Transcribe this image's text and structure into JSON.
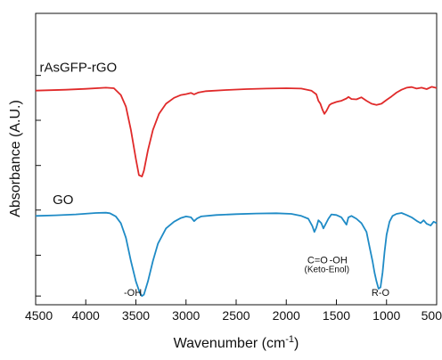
{
  "chart_data": {
    "type": "line",
    "title": "",
    "xlabel": "Wavenumber (cm",
    "xlabel_sup": "-1",
    "xlabel_close": ")",
    "ylabel": "Absorbance (A.U.)",
    "xlim": [
      4500,
      500
    ],
    "ylim": [
      0,
      1
    ],
    "x_inverted": true,
    "x_ticks": [
      4500,
      4000,
      3500,
      3000,
      2500,
      2000,
      1500,
      1000,
      500
    ],
    "y_ticks": [
      0.03,
      0.17,
      0.325,
      0.478,
      0.633,
      0.787
    ],
    "y_tick_labels_shown": false,
    "grid": false,
    "legend": "none",
    "series": [
      {
        "name": "rAsGFP-rGO",
        "color": "#e02a2a",
        "points": [
          [
            4500,
            0.735
          ],
          [
            4200,
            0.738
          ],
          [
            4000,
            0.741
          ],
          [
            3800,
            0.745
          ],
          [
            3720,
            0.743
          ],
          [
            3650,
            0.72
          ],
          [
            3600,
            0.68
          ],
          [
            3550,
            0.6
          ],
          [
            3500,
            0.5
          ],
          [
            3470,
            0.445
          ],
          [
            3440,
            0.44
          ],
          [
            3420,
            0.46
          ],
          [
            3380,
            0.53
          ],
          [
            3330,
            0.6
          ],
          [
            3270,
            0.655
          ],
          [
            3200,
            0.69
          ],
          [
            3120,
            0.71
          ],
          [
            3050,
            0.72
          ],
          [
            3000,
            0.723
          ],
          [
            2950,
            0.727
          ],
          [
            2920,
            0.722
          ],
          [
            2880,
            0.728
          ],
          [
            2800,
            0.733
          ],
          [
            2600,
            0.737
          ],
          [
            2400,
            0.74
          ],
          [
            2200,
            0.742
          ],
          [
            2000,
            0.743
          ],
          [
            1850,
            0.742
          ],
          [
            1750,
            0.735
          ],
          [
            1700,
            0.722
          ],
          [
            1680,
            0.7
          ],
          [
            1660,
            0.69
          ],
          [
            1640,
            0.67
          ],
          [
            1620,
            0.655
          ],
          [
            1600,
            0.665
          ],
          [
            1570,
            0.685
          ],
          [
            1550,
            0.69
          ],
          [
            1500,
            0.696
          ],
          [
            1450,
            0.7
          ],
          [
            1400,
            0.708
          ],
          [
            1380,
            0.713
          ],
          [
            1350,
            0.706
          ],
          [
            1300,
            0.705
          ],
          [
            1250,
            0.712
          ],
          [
            1200,
            0.7
          ],
          [
            1150,
            0.69
          ],
          [
            1100,
            0.686
          ],
          [
            1050,
            0.69
          ],
          [
            1000,
            0.703
          ],
          [
            950,
            0.715
          ],
          [
            900,
            0.728
          ],
          [
            850,
            0.738
          ],
          [
            800,
            0.745
          ],
          [
            750,
            0.747
          ],
          [
            700,
            0.742
          ],
          [
            650,
            0.745
          ],
          [
            600,
            0.74
          ],
          [
            550,
            0.748
          ],
          [
            500,
            0.744
          ]
        ]
      },
      {
        "name": "GO",
        "color": "#1f8bc6",
        "points": [
          [
            4500,
            0.305
          ],
          [
            4300,
            0.307
          ],
          [
            4100,
            0.31
          ],
          [
            3900,
            0.315
          ],
          [
            3800,
            0.316
          ],
          [
            3760,
            0.314
          ],
          [
            3700,
            0.303
          ],
          [
            3650,
            0.28
          ],
          [
            3600,
            0.23
          ],
          [
            3550,
            0.15
          ],
          [
            3500,
            0.08
          ],
          [
            3460,
            0.04
          ],
          [
            3440,
            0.03
          ],
          [
            3420,
            0.035
          ],
          [
            3380,
            0.08
          ],
          [
            3330,
            0.15
          ],
          [
            3280,
            0.21
          ],
          [
            3200,
            0.262
          ],
          [
            3120,
            0.285
          ],
          [
            3050,
            0.298
          ],
          [
            3000,
            0.303
          ],
          [
            2950,
            0.3
          ],
          [
            2920,
            0.287
          ],
          [
            2890,
            0.296
          ],
          [
            2850,
            0.303
          ],
          [
            2700,
            0.308
          ],
          [
            2500,
            0.311
          ],
          [
            2300,
            0.313
          ],
          [
            2100,
            0.314
          ],
          [
            1950,
            0.312
          ],
          [
            1850,
            0.305
          ],
          [
            1780,
            0.295
          ],
          [
            1740,
            0.27
          ],
          [
            1720,
            0.25
          ],
          [
            1700,
            0.265
          ],
          [
            1680,
            0.29
          ],
          [
            1650,
            0.28
          ],
          [
            1630,
            0.262
          ],
          [
            1610,
            0.275
          ],
          [
            1580,
            0.295
          ],
          [
            1550,
            0.31
          ],
          [
            1500,
            0.308
          ],
          [
            1450,
            0.3
          ],
          [
            1420,
            0.285
          ],
          [
            1400,
            0.275
          ],
          [
            1380,
            0.3
          ],
          [
            1350,
            0.305
          ],
          [
            1300,
            0.295
          ],
          [
            1250,
            0.28
          ],
          [
            1200,
            0.25
          ],
          [
            1170,
            0.2
          ],
          [
            1140,
            0.15
          ],
          [
            1120,
            0.11
          ],
          [
            1100,
            0.08
          ],
          [
            1080,
            0.055
          ],
          [
            1060,
            0.06
          ],
          [
            1040,
            0.11
          ],
          [
            1020,
            0.18
          ],
          [
            1000,
            0.24
          ],
          [
            970,
            0.285
          ],
          [
            940,
            0.305
          ],
          [
            900,
            0.312
          ],
          [
            850,
            0.315
          ],
          [
            800,
            0.308
          ],
          [
            750,
            0.3
          ],
          [
            700,
            0.288
          ],
          [
            660,
            0.28
          ],
          [
            630,
            0.29
          ],
          [
            600,
            0.278
          ],
          [
            560,
            0.272
          ],
          [
            530,
            0.285
          ],
          [
            500,
            0.28
          ]
        ]
      }
    ],
    "annotations": [
      {
        "text": "rAsGFP-rGO",
        "x": 4460,
        "y": 0.8,
        "class": "series-label"
      },
      {
        "text": "GO",
        "x": 4330,
        "y": 0.345,
        "class": "series-label"
      },
      {
        "text": "-OH",
        "x": 3620,
        "y": 0.03,
        "class": "annot"
      },
      {
        "text": "C=O",
        "x": 1790,
        "y": 0.142,
        "class": "annot"
      },
      {
        "text": "-OH",
        "x": 1570,
        "y": 0.142,
        "class": "annot"
      },
      {
        "text": "(Keto-Enol)",
        "x": 1820,
        "y": 0.112,
        "class": "annot-small"
      },
      {
        "text": "R-O",
        "x": 1150,
        "y": 0.03,
        "class": "annot"
      }
    ]
  }
}
